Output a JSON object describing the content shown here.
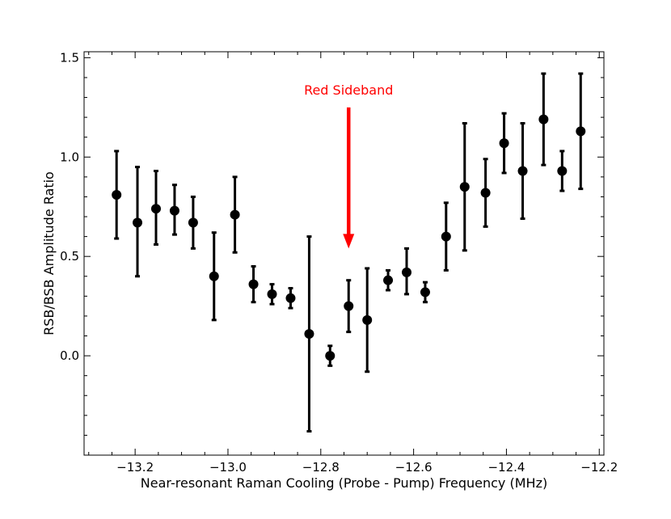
{
  "chart_data": {
    "type": "scatter",
    "xlabel": "Near-resonant Raman Cooling (Probe - Pump) Frequency (MHz)",
    "ylabel": "RSB/BSB Amplitude Ratio",
    "xlim": [
      -13.31,
      -12.19
    ],
    "ylim": [
      -0.5,
      1.53
    ],
    "xticks": [
      -13.2,
      -13.0,
      -12.8,
      -12.6,
      -12.4,
      -12.2
    ],
    "xtick_labels": [
      "−13.2",
      "−13.0",
      "−12.8",
      "−12.6",
      "−12.4",
      "−12.2"
    ],
    "yticks": [
      0.0,
      0.5,
      1.0,
      1.5
    ],
    "ytick_labels": [
      "0.0",
      "0.5",
      "1.0",
      "1.5"
    ],
    "grid": false,
    "colors": {
      "points": "#000000",
      "annotation": "#ff0000"
    },
    "series": [
      {
        "x": [
          -13.24,
          -13.195,
          -13.155,
          -13.115,
          -13.075,
          -13.03,
          -12.985,
          -12.945,
          -12.905,
          -12.865,
          -12.825,
          -12.78,
          -12.74,
          -12.7,
          -12.655,
          -12.615,
          -12.575,
          -12.53,
          -12.49,
          -12.445,
          -12.405,
          -12.365,
          -12.32,
          -12.28,
          -12.24
        ],
        "y": [
          0.81,
          0.67,
          0.74,
          0.73,
          0.67,
          0.4,
          0.71,
          0.36,
          0.31,
          0.29,
          0.11,
          0.0,
          0.25,
          0.18,
          0.38,
          0.42,
          0.32,
          0.6,
          0.85,
          0.82,
          1.07,
          0.93,
          1.19,
          0.93,
          1.13
        ],
        "yerr_low": [
          0.22,
          0.27,
          0.18,
          0.12,
          0.13,
          0.22,
          0.19,
          0.09,
          0.05,
          0.05,
          0.49,
          0.05,
          0.13,
          0.26,
          0.05,
          0.11,
          0.05,
          0.17,
          0.32,
          0.17,
          0.15,
          0.24,
          0.23,
          0.1,
          0.29
        ],
        "yerr_high": [
          0.22,
          0.28,
          0.19,
          0.13,
          0.13,
          0.22,
          0.19,
          0.09,
          0.05,
          0.05,
          0.49,
          0.05,
          0.13,
          0.26,
          0.05,
          0.12,
          0.05,
          0.17,
          0.32,
          0.17,
          0.15,
          0.24,
          0.23,
          0.1,
          0.29
        ]
      }
    ],
    "annotations": [
      {
        "text": "Red Sideband",
        "arrow_x": -12.74,
        "arrow_y_start": 1.25,
        "arrow_y_end": 0.54,
        "color": "#ff0000"
      }
    ]
  }
}
